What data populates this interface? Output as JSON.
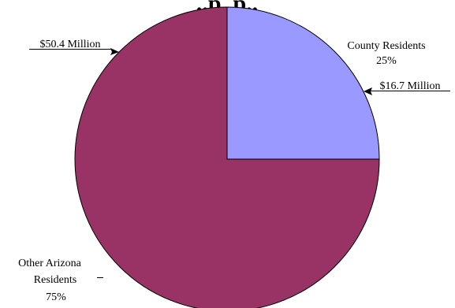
{
  "chart_data": {
    "type": "pie",
    "title": "... (partial, cut off at top of image)",
    "slices": [
      {
        "name": "County Residents",
        "percent": 25,
        "percent_label": "25%",
        "amount_label": "$16.7 Million",
        "color": "#9999FF"
      },
      {
        "name": "Other Arizona Residents",
        "name_lines": [
          "Other Arizona",
          "Residents"
        ],
        "percent": 75,
        "percent_label": "75%",
        "amount_label": "$50.4 Million",
        "color": "#993366"
      }
    ],
    "start_angle": "12 o'clock",
    "direction": "clockwise",
    "legend": "none"
  }
}
